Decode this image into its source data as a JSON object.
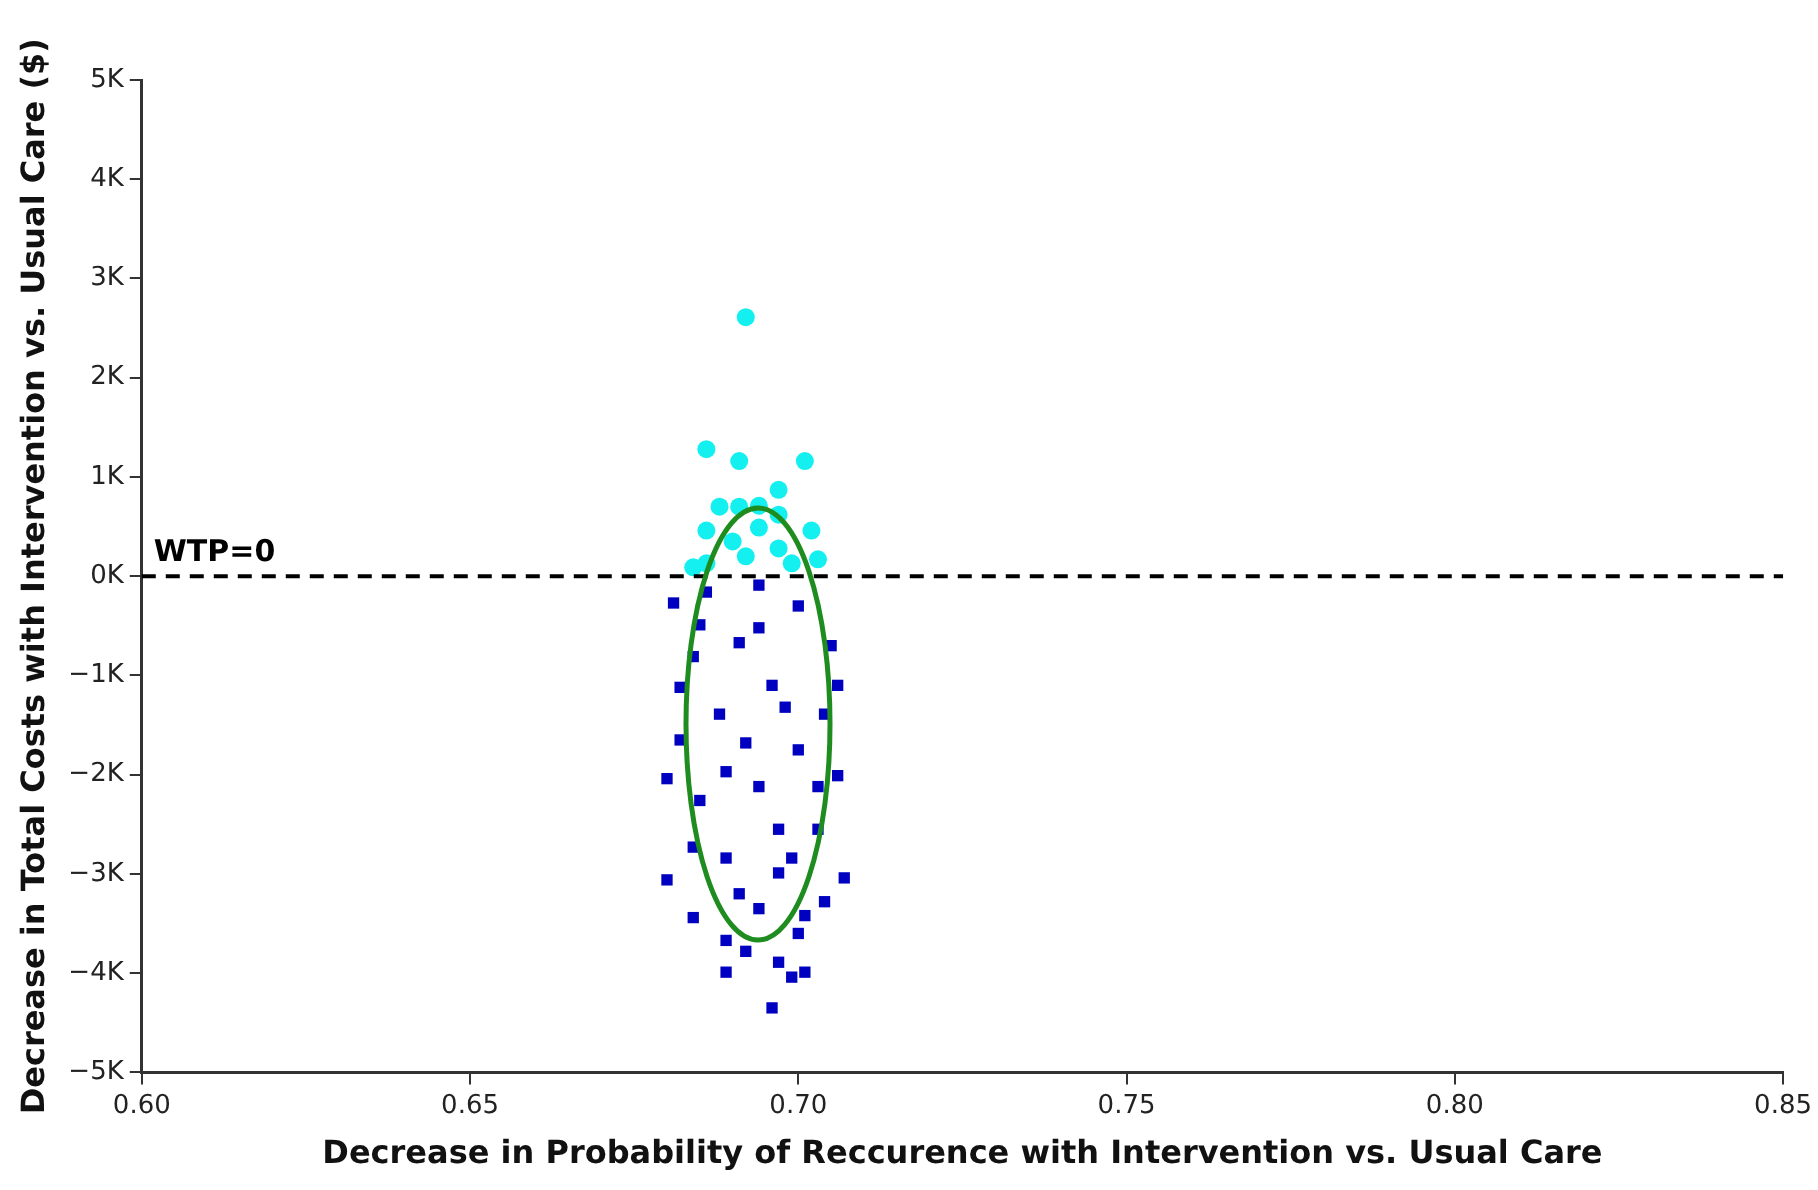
{
  "chart_data": {
    "type": "scatter",
    "xlabel": "Decrease in Probability of Reccurence with Intervention vs. Usual Care",
    "ylabel": "Decrease in Total Costs with Intervention vs. Usual Care ($)",
    "xlim": [
      0.6,
      0.85
    ],
    "xticks": [
      {
        "value": 0.6,
        "label": "0.60"
      },
      0.65,
      {
        "value": 0.7,
        "label": "0.70"
      },
      0.75,
      {
        "value": 0.8,
        "label": "0.80"
      },
      0.85
    ],
    "ylim": [
      -5000,
      5000
    ],
    "yticks": [
      {
        "value": -5000,
        "label": "−5K"
      },
      {
        "value": -4000,
        "label": "−4K"
      },
      {
        "value": -3000,
        "label": "−3K"
      },
      {
        "value": -2000,
        "label": "−2K"
      },
      {
        "value": -1000,
        "label": "−1K"
      },
      {
        "value": 0,
        "label": "0K"
      },
      {
        "value": 1000,
        "label": "1K"
      },
      {
        "value": 2000,
        "label": "2K"
      },
      {
        "value": 3000,
        "label": "3K"
      },
      {
        "value": 4000,
        "label": "4K"
      },
      {
        "value": 5000,
        "label": "5K"
      }
    ],
    "grid": false,
    "legend": false,
    "ref_lines": [
      {
        "axis": "y",
        "value": 0,
        "label": "WTP=0",
        "color": "#000000",
        "line_style": "dashed"
      }
    ],
    "series": [
      {
        "marker": "circle",
        "color": "#14f0f0",
        "x": [
          0.692,
          0.686,
          0.691,
          0.701,
          0.697,
          0.688,
          0.691,
          0.694,
          0.697,
          0.686,
          0.702,
          0.69,
          0.694,
          0.703,
          0.686,
          0.692,
          0.697,
          0.699,
          0.684
        ],
        "values": [
          2610,
          1280,
          1160,
          1160,
          870,
          700,
          700,
          710,
          620,
          460,
          460,
          350,
          490,
          170,
          130,
          200,
          280,
          130,
          90
        ]
      },
      {
        "marker": "square",
        "color": "#0000c0",
        "x": [
          0.681,
          0.705,
          0.682,
          0.706,
          0.682,
          0.706,
          0.68,
          0.684,
          0.68,
          0.707,
          0.684,
          0.704,
          0.689,
          0.692,
          0.689,
          0.697,
          0.701,
          0.699,
          0.696,
          0.7,
          0.701,
          0.694,
          0.689,
          0.699,
          0.703,
          0.685,
          0.694,
          0.7,
          0.688,
          0.696,
          0.691,
          0.7,
          0.686,
          0.694,
          0.704,
          0.684,
          0.692,
          0.697,
          0.691,
          0.697,
          0.698,
          0.689,
          0.703,
          0.694,
          0.685
        ],
        "values": [
          -270,
          -700,
          -1120,
          -1100,
          -1650,
          -2010,
          -2040,
          -2730,
          -3060,
          -3040,
          -3440,
          -3280,
          -3670,
          -3780,
          -3990,
          -3890,
          -3990,
          -4040,
          -4350,
          -3600,
          -3420,
          -3350,
          -2840,
          -2840,
          -2550,
          -2260,
          -2120,
          -1750,
          -1390,
          -1100,
          -670,
          -300,
          -160,
          -90,
          -1390,
          -810,
          -1680,
          -2550,
          -3200,
          -2990,
          -1320,
          -1970,
          -2120,
          -520,
          -490
        ]
      }
    ]
  }
}
